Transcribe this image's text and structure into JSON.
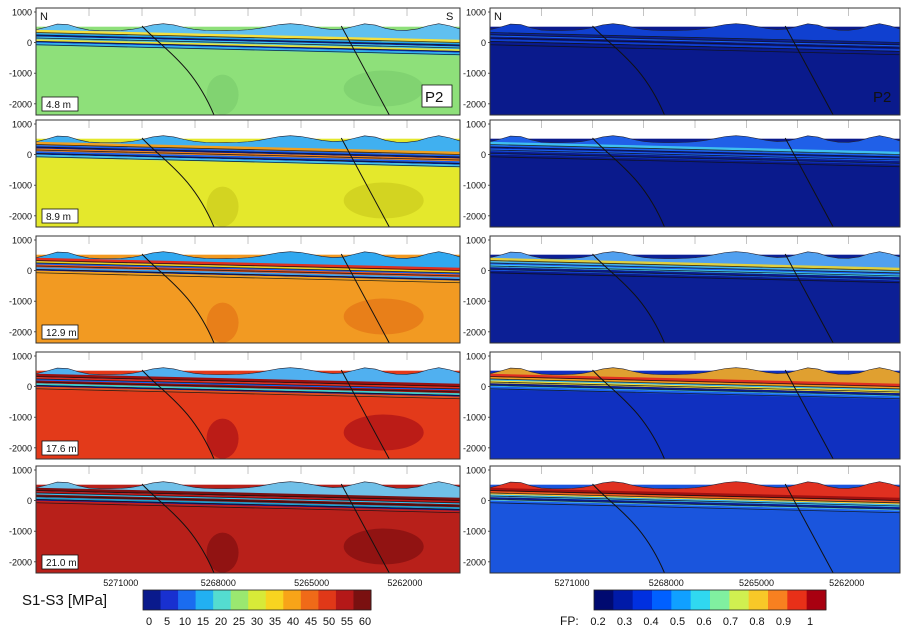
{
  "left_column": {
    "panel_labels": [
      "4.8 m",
      "8.9 m",
      "12.9 m",
      "17.6 m",
      "21.0 m"
    ],
    "profile_tag": "P2",
    "north": "N",
    "south": "S",
    "colorbar_title": "S1-S3 [MPa]",
    "colorbar_ticks": [
      "0",
      "5",
      "10",
      "15",
      "20",
      "25",
      "30",
      "35",
      "40",
      "45",
      "50",
      "55",
      "60"
    ]
  },
  "right_column": {
    "profile_tag": "P2",
    "north": "N",
    "colorbar_title": "FP:",
    "colorbar_ticks": [
      "0.2",
      "0.3",
      "0.4",
      "0.5",
      "0.6",
      "0.7",
      "0.8",
      "0.9",
      "1"
    ]
  },
  "y_ticks": [
    "1000",
    "0",
    "-1000",
    "-2000"
  ],
  "x_ticks": [
    "5271000",
    "5268000",
    "5265000",
    "5262000"
  ],
  "left_bg_colors": [
    "#8ee07a",
    "#e4e82c",
    "#f29a22",
    "#e33a1a",
    "#b8201a"
  ],
  "right_bg_colors": [
    "#0a1a8c",
    "#0a1a8c",
    "#0c1f95",
    "#1030c0",
    "#1a55dd"
  ],
  "colors": {
    "stress_scale": [
      "#0a1a8c",
      "#1830d0",
      "#1a6cf0",
      "#22b0f2",
      "#54dcd0",
      "#9ae870",
      "#d8ea38",
      "#f8d420",
      "#f8a418",
      "#f06a18",
      "#e03818",
      "#b41818",
      "#7a1010"
    ],
    "fp_scale": [
      "#000a70",
      "#001aa8",
      "#0030e0",
      "#0060ff",
      "#10a0ff",
      "#30d8f0",
      "#80f0a0",
      "#d0f050",
      "#f8c828",
      "#f88020",
      "#e83018",
      "#a80010"
    ]
  }
}
